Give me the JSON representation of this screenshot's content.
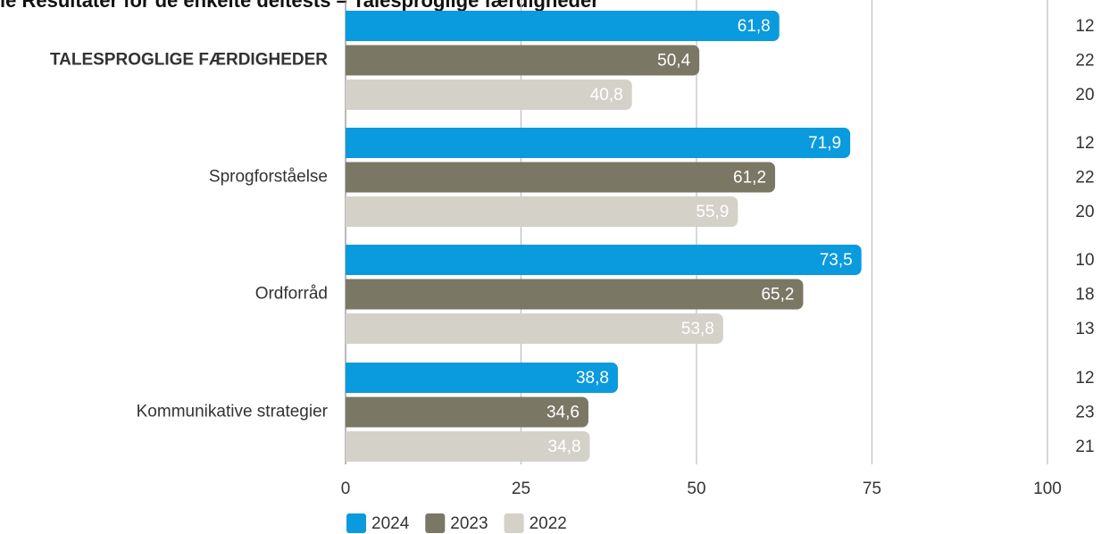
{
  "chart_data": {
    "type": "bar",
    "orientation": "horizontal",
    "title": "le Resultater for de enkelte deltests – Talesproglige færdigheder",
    "categories": [
      "TALESPROGLIGE FÆRDIGHEDER",
      "Sprogforståelse",
      "Ordforråd",
      "Kommunikative strategier"
    ],
    "series": [
      {
        "name": "2024",
        "color": "#0a9ade",
        "values": [
          61.8,
          71.9,
          73.5,
          38.8
        ],
        "value_labels": [
          "61,8",
          "71,9",
          "73,5",
          "38,8"
        ],
        "counts": [
          12,
          12,
          10,
          12
        ]
      },
      {
        "name": "2023",
        "color": "#7a7765",
        "values": [
          50.4,
          61.2,
          65.2,
          34.6
        ],
        "value_labels": [
          "50,4",
          "61,2",
          "65,2",
          "34,6"
        ],
        "counts": [
          22,
          22,
          18,
          23
        ]
      },
      {
        "name": "2022",
        "color": "#d3d1c8",
        "values": [
          40.8,
          55.9,
          53.8,
          34.8
        ],
        "value_labels": [
          "40,8",
          "55,9",
          "53,8",
          "34,8"
        ],
        "counts": [
          20,
          20,
          13,
          21
        ]
      }
    ],
    "xlim": [
      0,
      100
    ],
    "xticks": [
      0,
      25,
      50,
      75,
      100
    ],
    "grid": true,
    "legend": "bottom"
  }
}
